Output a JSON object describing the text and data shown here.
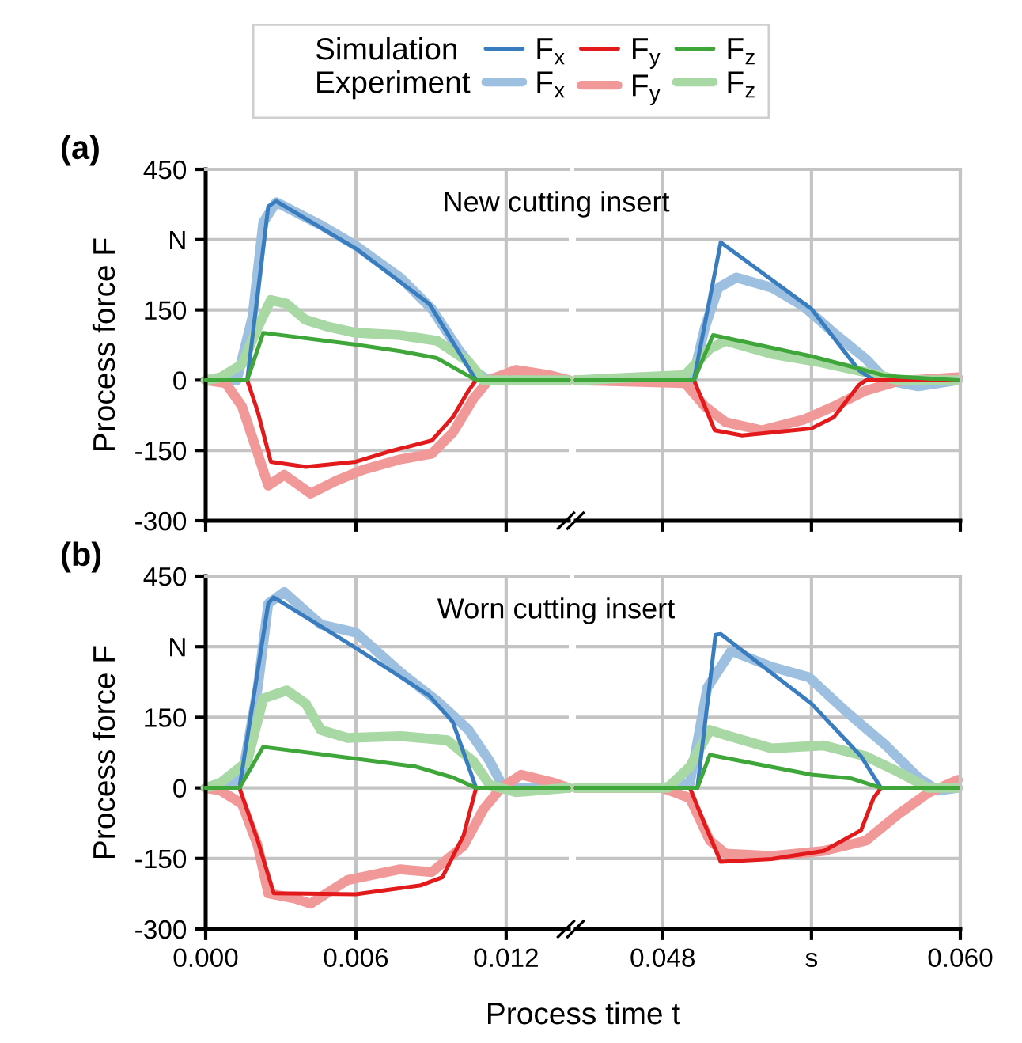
{
  "chart_data": [
    {
      "type": "line",
      "title": "(a)",
      "ylabel": "Process force F",
      "annotations": [
        "Simulation",
        "Experiment",
        "New cutting insert"
      ],
      "legend": "top",
      "grid": true,
      "tick_labels": "y",
      "xlim": [
        0,
        0.0145
      ],
      "xticks": [
        0,
        0.006,
        0.012
      ],
      "ylim": [
        -300,
        450
      ],
      "yticks": [
        -300,
        -150,
        0,
        150,
        {
          "value": 300,
          "label": "N"
        },
        450
      ],
      "series": [
        {
          "name": "F$_{x}$",
          "color": "#9dc0e0",
          "x": [
            0,
            0.00124,
            0.00187,
            0.0023,
            0.00282,
            0.0046,
            0.006,
            0.00777,
            0.00903,
            0.01008,
            0.0108,
            0.0113,
            0.0145
          ],
          "values": [
            0,
            0,
            135,
            337,
            380,
            331,
            287,
            219,
            152,
            67,
            17,
            0,
            0
          ]
        },
        {
          "name": "F$_{y}$",
          "color": "#f19999",
          "x": [
            0,
            0.0008,
            0.00145,
            0.00208,
            0.0025,
            0.00314,
            0.00419,
            0.00524,
            0.0063,
            0.00777,
            0.00903,
            0.00987,
            0.0107,
            0.0113,
            0.0124,
            0.0137,
            0.0145
          ],
          "values": [
            0,
            -6,
            -56,
            -157,
            -225,
            -202,
            -242,
            -214,
            -191,
            -169,
            -157,
            -112,
            -39,
            0,
            22,
            11,
            0
          ]
        },
        {
          "name": "F$_{z}$",
          "color": "#a8d8a4",
          "x": [
            0,
            0.0006,
            0.00145,
            0.00208,
            0.0026,
            0.00324,
            0.00398,
            0.00482,
            0.006,
            0.00777,
            0.00924,
            0.0105,
            0.0111,
            0.0145
          ],
          "values": [
            0,
            6,
            34,
            112,
            171,
            163,
            129,
            115,
            101,
            96,
            84,
            39,
            0,
            0
          ]
        },
        {
          "name": "F$_{x}$",
          "color": "#3a7dbf",
          "x": [
            0,
            0.00166,
            0.0025,
            0.00282,
            0.006,
            0.00893,
            0.0108,
            0.0145
          ],
          "values": [
            0,
            0,
            371,
            382,
            281,
            163,
            0,
            0
          ]
        },
        {
          "name": "F$_{y}$",
          "color": "#e31a1c",
          "x": [
            0,
            0.00166,
            0.00208,
            0.0026,
            0.004,
            0.006,
            0.00735,
            0.00903,
            0.00987,
            0.0105,
            0.0108,
            0.0145
          ],
          "values": [
            0,
            0,
            -67,
            -174,
            -185,
            -174,
            -152,
            -129,
            -79,
            -22,
            0,
            0
          ]
        },
        {
          "name": "F$_{z}$",
          "color": "#3fa63a",
          "x": [
            0,
            0.00166,
            0.0023,
            0.006,
            0.00777,
            0.00924,
            0.0108,
            0.0145
          ],
          "values": [
            0,
            0,
            101,
            76,
            62,
            47,
            0,
            0
          ]
        }
      ]
    },
    {
      "type": "line",
      "grid": true,
      "tick_labels": false,
      "xlim": [
        0.0445,
        0.06
      ],
      "xticks": [
        0.048,
        0.054,
        0.06
      ],
      "ylim": [
        -300,
        450
      ],
      "yticks": [
        -300,
        -150,
        0,
        150,
        300,
        450
      ],
      "series": [
        {
          "color": "#9dc0e0",
          "x": [
            0.0445,
            0.0492,
            0.0497,
            0.05024,
            0.05097,
            0.05243,
            0.0537,
            0.0549,
            0.0562,
            0.057,
            0.0583,
            0.0599
          ],
          "values": [
            0,
            0,
            112,
            197,
            219,
            197,
            157,
            101,
            45,
            0,
            -13,
            0
          ]
        },
        {
          "color": "#f19999",
          "x": [
            0.0445,
            0.0489,
            0.0497,
            0.05055,
            0.052,
            0.0537,
            0.0549,
            0.0562,
            0.0575,
            0.0599
          ],
          "values": [
            0,
            -6,
            -56,
            -90,
            -107,
            -84,
            -56,
            -22,
            -2,
            6
          ]
        },
        {
          "color": "#a8d8a4",
          "x": [
            0.0445,
            0.0489,
            0.0499,
            0.05055,
            0.0524,
            0.0543,
            0.0562,
            0.0575,
            0.0599
          ],
          "values": [
            0,
            11,
            67,
            84,
            56,
            39,
            17,
            0,
            0
          ]
        },
        {
          "color": "#3a7dbf",
          "x": [
            0.0445,
            0.04926,
            0.05034,
            0.054,
            0.0559,
            0.0565,
            0.0599
          ],
          "values": [
            0,
            0,
            294,
            152,
            22,
            0,
            0
          ]
        },
        {
          "color": "#e31a1c",
          "x": [
            0.0445,
            0.04926,
            0.0501,
            0.0512,
            0.054,
            0.0549,
            0.0559,
            0.0562,
            0.0599
          ],
          "values": [
            0,
            0,
            -107,
            -118,
            -103,
            -79,
            -11,
            0,
            0
          ]
        },
        {
          "color": "#3fa63a",
          "x": [
            0.0445,
            0.04926,
            0.05003,
            0.054,
            0.0559,
            0.057,
            0.0599
          ],
          "values": [
            0,
            0,
            96,
            51,
            25,
            9,
            0
          ]
        }
      ]
    },
    {
      "type": "line",
      "title": "(b)",
      "ylabel": "Process force F",
      "xlabel": "Process time t",
      "annotations": [
        "Worn cutting insert"
      ],
      "grid": true,
      "xlim": [
        0,
        0.0145
      ],
      "xticks": [
        {
          "value": 0,
          "label": "0.000"
        },
        {
          "value": 0.006,
          "label": "0.006"
        },
        {
          "value": 0.012,
          "label": "0.012"
        }
      ],
      "ylim": [
        -300,
        450
      ],
      "yticks": [
        -300,
        -150,
        0,
        150,
        {
          "value": 300,
          "label": "N"
        },
        450
      ],
      "series": [
        {
          "color": "#9dc0e0",
          "x": [
            0,
            0.0006,
            0.00145,
            0.00208,
            0.0025,
            0.00314,
            0.0046,
            0.006,
            0.00777,
            0.00924,
            0.0105,
            0.01135,
            0.0119,
            0.0145
          ],
          "values": [
            0,
            0,
            22,
            213,
            392,
            416,
            347,
            330,
            246,
            185,
            123,
            56,
            0,
            0
          ]
        },
        {
          "color": "#f19999",
          "x": [
            0,
            0.0006,
            0.00145,
            0.00208,
            0.0025,
            0.00356,
            0.00419,
            0.00566,
            0.00777,
            0.00903,
            0.0103,
            0.0111,
            0.0118,
            0.0126,
            0.0139,
            0.0145
          ],
          "values": [
            0,
            -6,
            -34,
            -123,
            -224,
            -235,
            -246,
            -196,
            -173,
            -179,
            -123,
            -45,
            0,
            28,
            11,
            0
          ]
        },
        {
          "color": "#a8d8a4",
          "x": [
            0,
            0.0006,
            0.00166,
            0.0023,
            0.00324,
            0.004,
            0.0046,
            0.00566,
            0.00777,
            0.00966,
            0.0107,
            0.01135,
            0.0124,
            0.0145
          ],
          "values": [
            0,
            11,
            56,
            190,
            207,
            179,
            123,
            106,
            110,
            101,
            56,
            6,
            -9,
            0
          ]
        },
        {
          "color": "#3a7dbf",
          "x": [
            0,
            0.00135,
            0.0025,
            0.00272,
            0.006,
            0.00893,
            0.00987,
            0.0108,
            0.0145
          ],
          "values": [
            0,
            0,
            392,
            405,
            297,
            196,
            140,
            0,
            0
          ]
        },
        {
          "color": "#e31a1c",
          "x": [
            0,
            0.00135,
            0.00208,
            0.00272,
            0.006,
            0.0086,
            0.00945,
            0.0103,
            0.0108,
            0.0145
          ],
          "values": [
            0,
            0,
            -112,
            -224,
            -226,
            -207,
            -190,
            -101,
            0,
            0
          ]
        },
        {
          "color": "#3fa63a",
          "x": [
            0,
            0.00135,
            0.0023,
            0.006,
            0.0084,
            0.00987,
            0.0108,
            0.0145
          ],
          "values": [
            0,
            0,
            87,
            62,
            45,
            22,
            0,
            0
          ]
        }
      ]
    },
    {
      "type": "line",
      "grid": true,
      "tick_labels": "x",
      "xlim": [
        0.0445,
        0.06
      ],
      "xticks": [
        {
          "value": 0.048,
          "label": "0.048"
        },
        {
          "value": 0.054,
          "label": "s"
        },
        {
          "value": 0.06,
          "label": "0.060"
        }
      ],
      "ylim": [
        -300,
        450
      ],
      "yticks": [
        -300,
        -150,
        0,
        150,
        300,
        450
      ],
      "series": [
        {
          "color": "#9dc0e0",
          "x": [
            0.0445,
            0.048,
            0.0491,
            0.0498,
            0.05076,
            0.0524,
            0.0539,
            0.0554,
            0.057,
            0.0583,
            0.0591,
            0.0599
          ],
          "values": [
            0,
            0,
            11,
            213,
            291,
            257,
            235,
            162,
            90,
            22,
            -6,
            0
          ]
        },
        {
          "color": "#f19999",
          "x": [
            0.0445,
            0.048,
            0.0491,
            0.0499,
            0.05055,
            0.0524,
            0.0545,
            0.0562,
            0.0575,
            0.0587,
            0.0599
          ],
          "values": [
            0,
            0,
            -22,
            -112,
            -140,
            -145,
            -134,
            -112,
            -56,
            -11,
            17
          ]
        },
        {
          "color": "#a8d8a4",
          "x": [
            0.0445,
            0.0482,
            0.0491,
            0.0499,
            0.05055,
            0.0524,
            0.0545,
            0.0562,
            0.0575,
            0.0587,
            0.0599
          ],
          "values": [
            0,
            0,
            45,
            123,
            112,
            84,
            90,
            67,
            34,
            0,
            0
          ]
        },
        {
          "color": "#3a7dbf",
          "x": [
            0.0445,
            0.0494,
            0.05013,
            0.05034,
            0.054,
            0.056,
            0.0568,
            0.0599
          ],
          "values": [
            0,
            0,
            325,
            327,
            179,
            67,
            0,
            0
          ]
        },
        {
          "color": "#e31a1c",
          "x": [
            0.0445,
            0.0491,
            0.0497,
            0.05034,
            0.0524,
            0.0545,
            0.056,
            0.0565,
            0.0568,
            0.0599
          ],
          "values": [
            0,
            0,
            -78,
            -157,
            -151,
            -134,
            -90,
            -22,
            0,
            0
          ]
        },
        {
          "color": "#3fa63a",
          "x": [
            0.0445,
            0.0494,
            0.0499,
            0.054,
            0.0556,
            0.0568,
            0.0599
          ],
          "values": [
            0,
            0,
            70,
            28,
            20,
            0,
            0
          ]
        }
      ]
    }
  ]
}
